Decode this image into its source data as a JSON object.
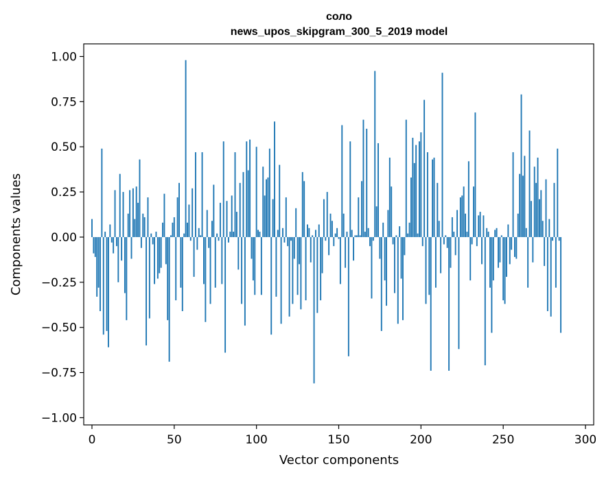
{
  "chart_data": {
    "type": "bar",
    "title_line1": "соло",
    "title_line2": "news_upos_skipgram_300_5_2019 model",
    "xlabel": "Vector components",
    "ylabel": "Components values",
    "xlim": [
      -5,
      305
    ],
    "ylim": [
      -1.04,
      1.07
    ],
    "xticks": [
      0,
      50,
      100,
      150,
      200,
      250,
      300
    ],
    "xtick_labels": [
      "0",
      "50",
      "100",
      "150",
      "200",
      "250",
      "300"
    ],
    "yticks": [
      1.0,
      0.75,
      0.5,
      0.25,
      0.0,
      -0.25,
      -0.5,
      -0.75,
      -1.0
    ],
    "ytick_labels": [
      "1.00",
      "0.75",
      "0.50",
      "0.25",
      "0.00",
      "−0.25",
      "−0.50",
      "−0.75",
      "−1.00"
    ],
    "bar_color": "#1f77b4",
    "values": [
      0.1,
      -0.09,
      -0.11,
      -0.33,
      -0.28,
      -0.41,
      0.49,
      -0.54,
      0.03,
      -0.52,
      -0.61,
      0.07,
      -0.03,
      -0.09,
      0.26,
      -0.05,
      -0.25,
      0.35,
      -0.13,
      0.25,
      -0.31,
      -0.46,
      0.13,
      0.26,
      -0.12,
      0.27,
      0.1,
      0.28,
      0.19,
      0.43,
      -0.06,
      0.13,
      0.11,
      -0.6,
      0.22,
      -0.45,
      0.02,
      -0.04,
      -0.26,
      0.03,
      -0.23,
      -0.2,
      -0.17,
      0.08,
      0.24,
      -0.15,
      -0.46,
      -0.69,
      0.01,
      0.08,
      0.11,
      -0.35,
      0.22,
      0.3,
      -0.28,
      -0.41,
      0.02,
      0.98,
      0.08,
      0.18,
      -0.02,
      0.27,
      -0.22,
      0.47,
      -0.07,
      0.05,
      0.01,
      0.47,
      -0.26,
      -0.47,
      0.15,
      -0.06,
      -0.37,
      0.09,
      0.29,
      -0.28,
      0.02,
      -0.02,
      0.19,
      -0.26,
      0.53,
      -0.64,
      0.2,
      -0.03,
      0.03,
      0.23,
      0.03,
      0.47,
      0.14,
      -0.18,
      0.3,
      -0.37,
      0.36,
      -0.49,
      0.53,
      0.37,
      0.54,
      -0.12,
      -0.24,
      -0.32,
      0.5,
      0.04,
      0.03,
      -0.32,
      0.39,
      0.23,
      0.32,
      0.33,
      0.49,
      -0.54,
      0.21,
      0.64,
      -0.33,
      0.04,
      0.4,
      -0.48,
      0.05,
      -0.03,
      0.22,
      -0.05,
      -0.44,
      -0.02,
      -0.37,
      -0.12,
      0.16,
      -0.32,
      -0.15,
      -0.4,
      0.36,
      0.31,
      -0.35,
      0.07,
      0.05,
      -0.14,
      0.01,
      -0.81,
      0.04,
      -0.42,
      0.07,
      -0.35,
      -0.2,
      0.21,
      -0.02,
      0.25,
      -0.1,
      0.13,
      0.09,
      -0.05,
      0.02,
      0.05,
      -0.01,
      -0.26,
      0.62,
      0.13,
      -0.17,
      0.03,
      -0.66,
      0.53,
      0.04,
      -0.13,
      0.01,
      0.01,
      0.22,
      0.01,
      0.31,
      0.65,
      0.03,
      0.6,
      0.05,
      -0.05,
      -0.34,
      -0.02,
      0.92,
      0.17,
      0.52,
      -0.12,
      -0.52,
      0.08,
      -0.24,
      -0.38,
      0.15,
      0.44,
      0.28,
      -0.04,
      -0.31,
      0.01,
      -0.48,
      0.06,
      -0.23,
      -0.46,
      -0.1,
      0.65,
      0.02,
      0.08,
      0.33,
      0.55,
      0.41,
      0.51,
      0.02,
      0.53,
      0.58,
      -0.05,
      0.76,
      -0.37,
      0.47,
      -0.32,
      -0.74,
      0.43,
      0.44,
      -0.28,
      0.3,
      0.09,
      -0.2,
      0.91,
      -0.04,
      0.01,
      -0.06,
      -0.74,
      -0.17,
      0.11,
      0.03,
      -0.1,
      0.15,
      -0.62,
      0.22,
      0.23,
      0.28,
      0.13,
      0.03,
      0.42,
      -0.24,
      -0.04,
      0.28,
      0.69,
      -0.05,
      0.12,
      0.14,
      -0.15,
      0.12,
      -0.71,
      0.05,
      0.03,
      -0.28,
      -0.53,
      -0.24,
      0.04,
      0.05,
      -0.17,
      -0.14,
      0.01,
      -0.35,
      -0.37,
      -0.22,
      0.07,
      -0.15,
      -0.07,
      0.47,
      -0.11,
      -0.12,
      0.13,
      0.35,
      0.79,
      0.34,
      0.45,
      0.05,
      -0.28,
      0.59,
      0.2,
      -0.14,
      0.39,
      0.3,
      0.44,
      0.21,
      0.26,
      0.09,
      -0.16,
      0.32,
      -0.41,
      0.1,
      -0.44,
      -0.02,
      0.3,
      -0.28,
      0.49,
      -0.02,
      -0.53
    ]
  }
}
